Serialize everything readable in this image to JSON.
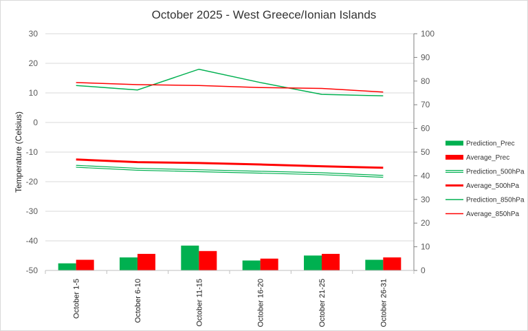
{
  "chart_data": {
    "type": "bar",
    "title": "October 2025 - West Greece/Ionian Islands",
    "ylabel": "Temperature (Celsius)",
    "y2label": "",
    "ylim": [
      -50,
      30
    ],
    "y2lim": [
      0,
      100
    ],
    "yticks": [
      30,
      20,
      10,
      0,
      -10,
      -20,
      -30,
      -40,
      -50
    ],
    "y2ticks": [
      100,
      90,
      80,
      70,
      60,
      50,
      40,
      30,
      20,
      10,
      0
    ],
    "categories": [
      "October 1-5",
      "October 6-10",
      "October 11-15",
      "October 16-20",
      "October 21-25",
      "October 26-31"
    ],
    "bar_series": [
      {
        "name": "Prediction_Prec",
        "axis": "right",
        "color": "#00b050",
        "values": [
          3.0,
          5.5,
          10.5,
          4.2,
          6.3,
          4.5
        ]
      },
      {
        "name": "Average_Prec",
        "axis": "right",
        "color": "#ff0000",
        "values": [
          4.5,
          7.0,
          8.2,
          5.0,
          7.0,
          5.5
        ]
      }
    ],
    "line_series": [
      {
        "name": "Prediction_500hPa",
        "axis": "left",
        "color": "#00b050",
        "style": "double",
        "values": [
          -14.8,
          -15.8,
          -16.3,
          -16.8,
          -17.3,
          -18.2
        ]
      },
      {
        "name": "Average_500hPa",
        "axis": "left",
        "color": "#ff0000",
        "style": "thick",
        "values": [
          -12.5,
          -13.4,
          -13.7,
          -14.2,
          -14.8,
          -15.3
        ]
      },
      {
        "name": "Prediction_850hPa",
        "axis": "left",
        "color": "#00b050",
        "style": "thin",
        "values": [
          12.5,
          11.0,
          18.0,
          13.5,
          9.5,
          9.0
        ]
      },
      {
        "name": "Average_850hPa",
        "axis": "left",
        "color": "#ff0000",
        "style": "thin",
        "values": [
          13.5,
          12.8,
          12.5,
          11.8,
          11.5,
          10.3
        ]
      }
    ],
    "grid": true,
    "legend_position": "right"
  }
}
